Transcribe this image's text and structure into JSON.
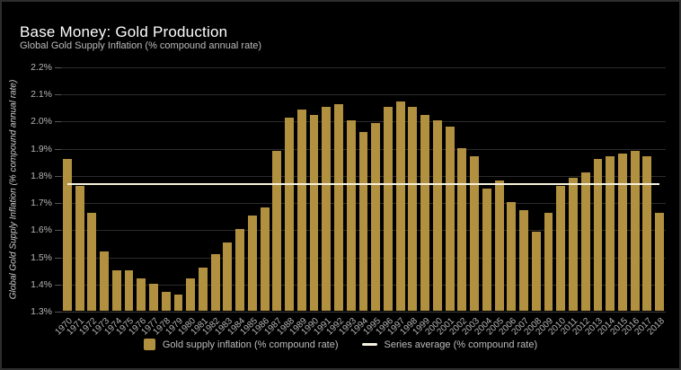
{
  "header": {
    "title": "Base Money: Gold Production",
    "subtitle": "Global Gold Supply Inflation (% compound annual rate)"
  },
  "legend": {
    "bars_label": "Gold supply inflation (% compound rate)",
    "average_label": "Series average (% compound rate)"
  },
  "colors": {
    "background": "#000000",
    "bar": "#b19040",
    "average_line": "#f7f2dd",
    "gridline": "#2b2b2b",
    "title_text": "#ffffff",
    "muted_text": "#b5b5b5"
  },
  "chart_data": {
    "type": "bar",
    "title": "Base Money: Gold Production",
    "subtitle": "Global Gold Supply Inflation (% compound annual rate)",
    "xlabel": "",
    "ylabel": "Global Gold Supply Inflation (% compound annual rate)",
    "ylim": [
      1.3,
      2.2
    ],
    "ytick_step": 0.1,
    "ytick_format": "percent_1dp",
    "grid": true,
    "legend_position": "bottom",
    "categories": [
      1970,
      1971,
      1972,
      1973,
      1974,
      1975,
      1976,
      1977,
      1978,
      1979,
      1980,
      1981,
      1982,
      1983,
      1984,
      1985,
      1986,
      1987,
      1988,
      1989,
      1990,
      1991,
      1992,
      1993,
      1994,
      1995,
      1996,
      1997,
      1998,
      1999,
      2000,
      2001,
      2002,
      2003,
      2004,
      2005,
      2006,
      2007,
      2008,
      2009,
      2010,
      2011,
      2012,
      2013,
      2014,
      2015,
      2016,
      2017,
      2018
    ],
    "series": [
      {
        "name": "Gold supply inflation (% compound rate)",
        "type": "bar",
        "values": [
          1.86,
          1.76,
          1.66,
          1.52,
          1.45,
          1.45,
          1.42,
          1.4,
          1.37,
          1.36,
          1.42,
          1.46,
          1.51,
          1.55,
          1.6,
          1.65,
          1.68,
          1.89,
          2.01,
          2.04,
          2.02,
          2.05,
          2.06,
          2.0,
          1.96,
          1.99,
          2.05,
          2.07,
          2.05,
          2.02,
          2.0,
          1.98,
          1.9,
          1.87,
          1.75,
          1.78,
          1.7,
          1.67,
          1.59,
          1.66,
          1.76,
          1.79,
          1.81,
          1.86,
          1.87,
          1.88,
          1.89,
          1.87,
          1.66
        ]
      },
      {
        "name": "Series average (% compound rate)",
        "type": "line",
        "value": 1.77
      }
    ]
  }
}
